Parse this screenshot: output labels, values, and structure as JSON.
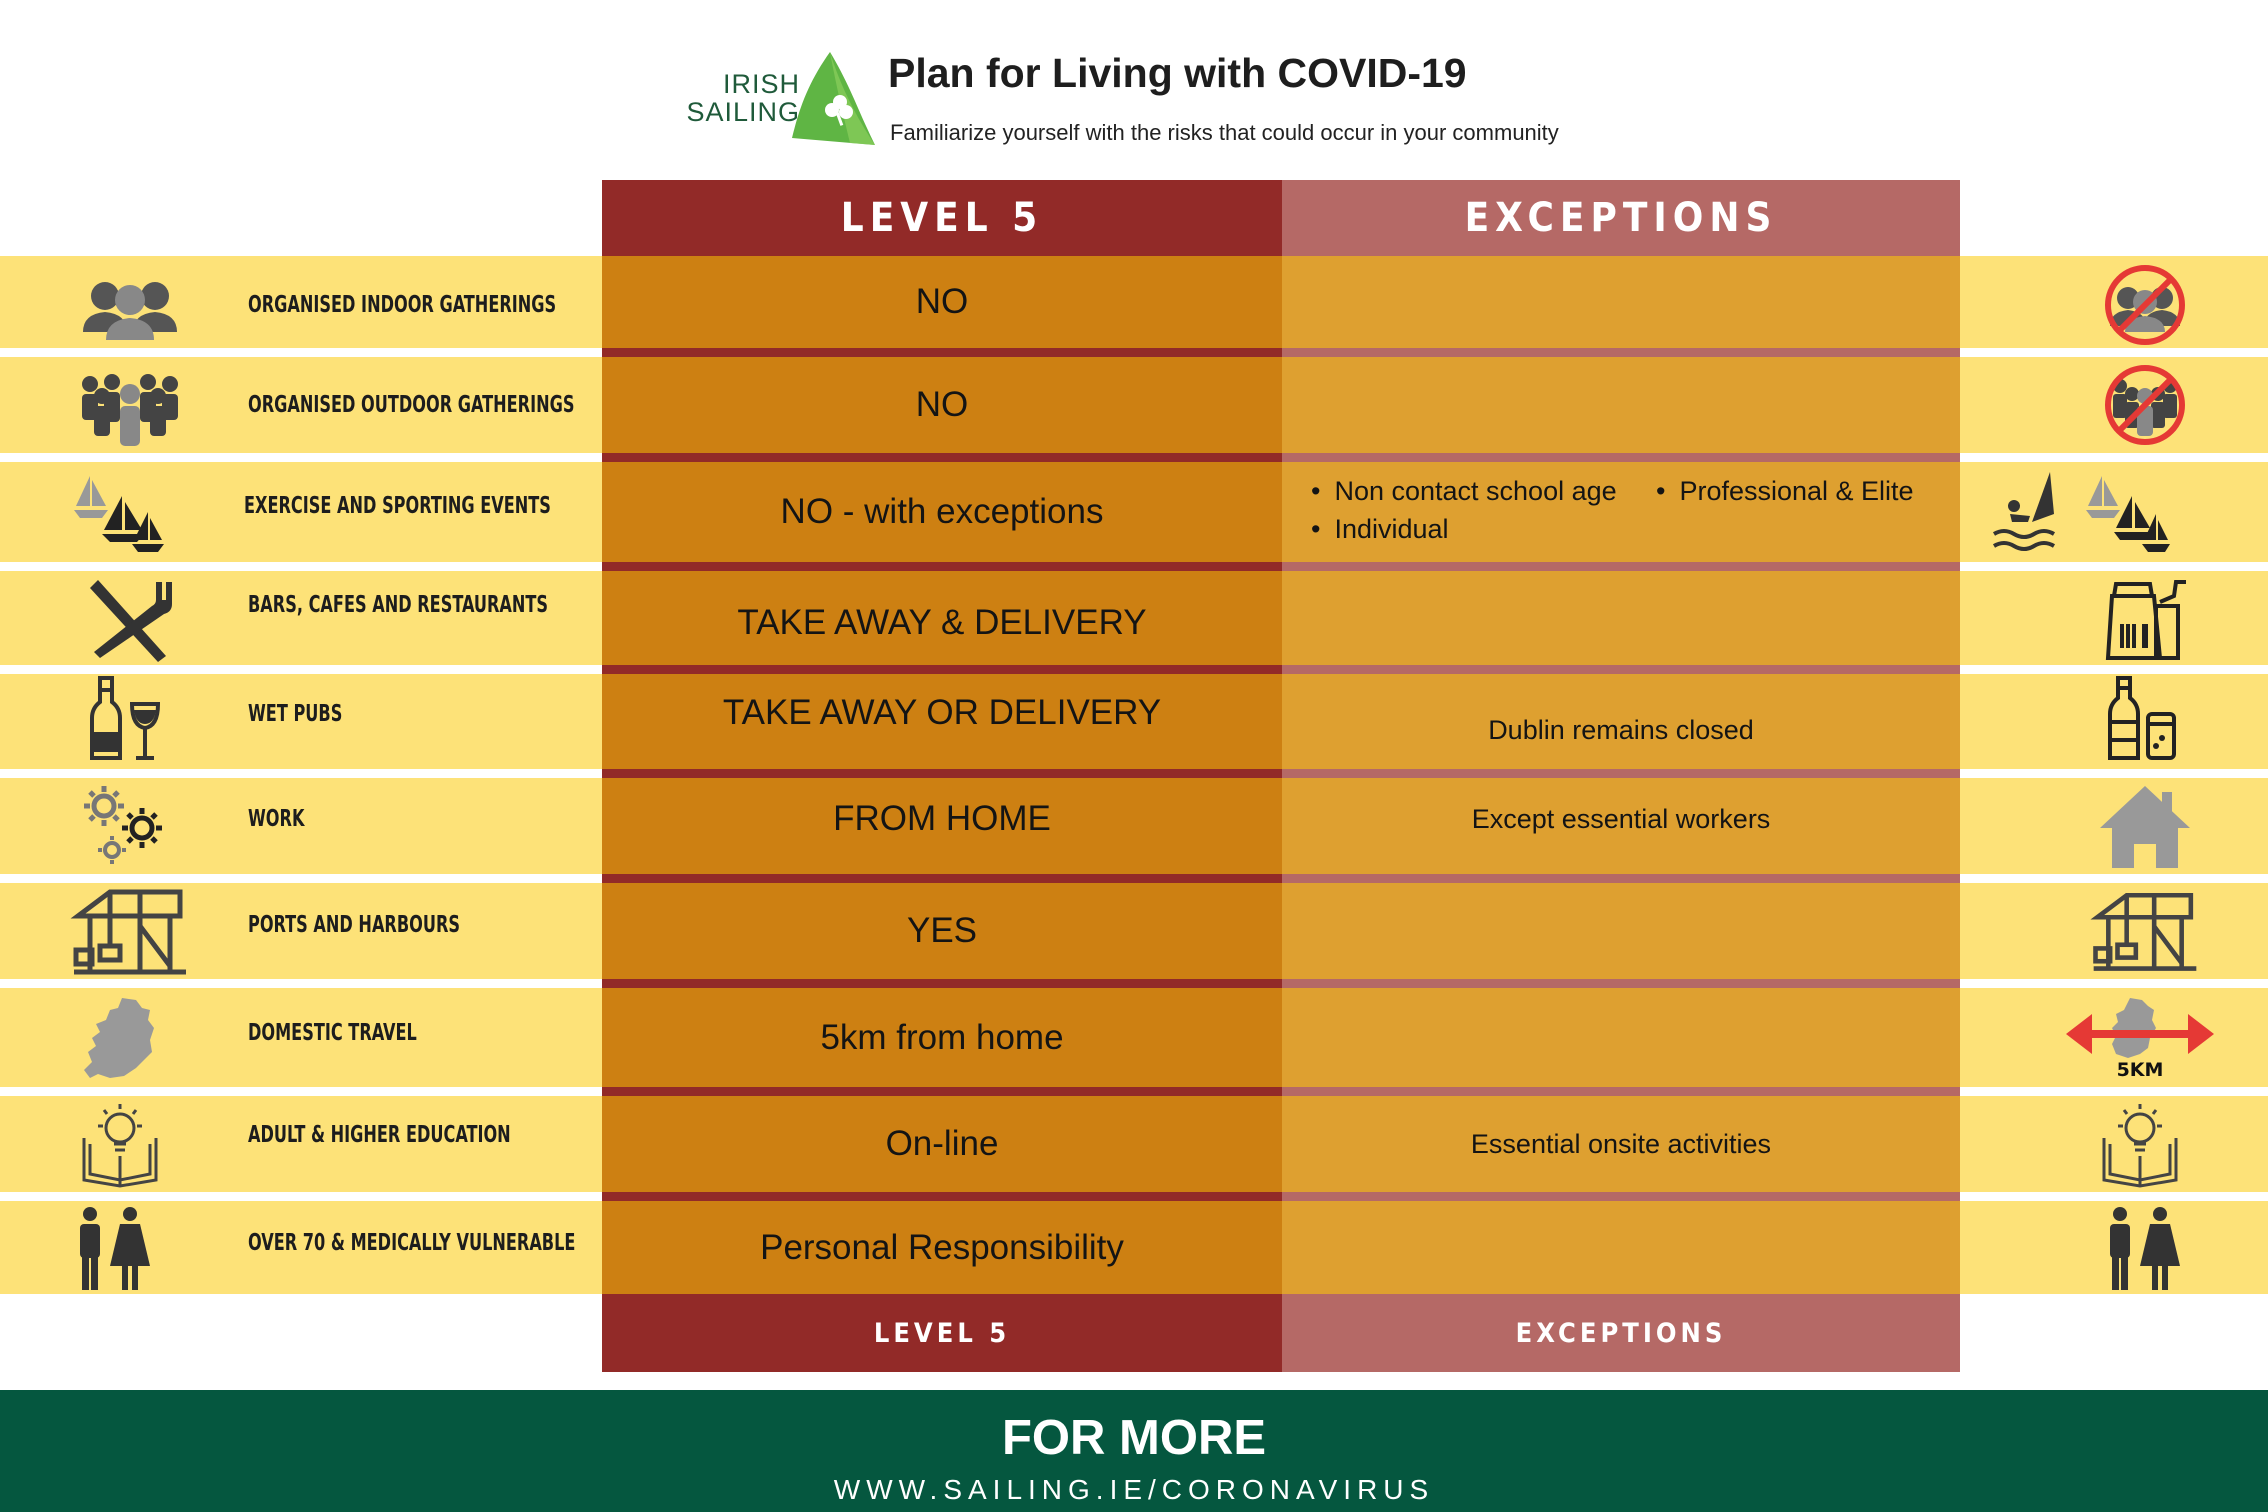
{
  "brand": {
    "line1": "IRISH",
    "line2": "SAILING",
    "leaf_color": "#5fb544",
    "text_color": "#1f5a3a"
  },
  "header": {
    "title": "Plan for Living with COVID-19",
    "subtitle": "Familiarize yourself with the risks that could occur in your community"
  },
  "columns": {
    "level": "LEVEL 5",
    "exceptions": "EXCEPTIONS"
  },
  "rows": [
    {
      "category": "ORGANISED INDOOR GATHERINGS",
      "level5": "NO",
      "exceptions": "",
      "left_icon": "people-group-icon",
      "right_icon": "no-people-group-icon"
    },
    {
      "category": "ORGANISED OUTDOOR GATHERINGS",
      "level5": "NO",
      "exceptions": "",
      "left_icon": "crowd-icon",
      "right_icon": "no-crowd-icon"
    },
    {
      "category": "EXERCISE AND SPORTING EVENTS",
      "level5": "NO - with exceptions",
      "exceptions_list": [
        "Non contact school age",
        "Professional & Elite",
        "Individual"
      ],
      "left_icon": "sailboats-icon",
      "right_icon": "windsurfer-sailboats-icon"
    },
    {
      "category": "BARS, CAFES AND RESTAURANTS",
      "level5": "TAKE AWAY & DELIVERY",
      "exceptions": "",
      "left_icon": "fork-knife-icon",
      "right_icon": "takeaway-bag-icon"
    },
    {
      "category": "WET PUBS",
      "level5": "TAKE AWAY OR DELIVERY",
      "exceptions": "Dublin remains closed",
      "left_icon": "wine-bottle-glass-icon",
      "right_icon": "bottle-can-icon"
    },
    {
      "category": "WORK",
      "level5": "FROM HOME",
      "exceptions": "Except essential workers",
      "left_icon": "gears-icon",
      "right_icon": "house-icon"
    },
    {
      "category": "PORTS AND HARBOURS",
      "level5": "YES",
      "exceptions": "",
      "left_icon": "harbour-crane-icon",
      "right_icon": "harbour-crane-icon"
    },
    {
      "category": "DOMESTIC TRAVEL",
      "level5": "5km from home",
      "exceptions": "",
      "left_icon": "ireland-map-icon",
      "right_icon": "five-km-radius-icon",
      "right_icon_text": "5KM"
    },
    {
      "category": "ADULT & HIGHER EDUCATION",
      "level5": "On-line",
      "exceptions": "Essential onsite activities",
      "left_icon": "lightbulb-book-icon",
      "right_icon": "lightbulb-book-icon"
    },
    {
      "category": "OVER 70 & MEDICALLY VULNERABLE",
      "level5": "Personal Responsibility",
      "exceptions": "",
      "left_icon": "man-woman-icon",
      "right_icon": "man-woman-icon"
    }
  ],
  "footer": {
    "title": "FOR MORE",
    "url": "WWW.SAILING.IE/CORONAVIRUS"
  },
  "colors": {
    "level_header": "#922a28",
    "exceptions_header": "#b56966",
    "level_cell": "#cd8012",
    "exceptions_cell": "#dea030",
    "band": "#fde278",
    "footer": "#05573f"
  }
}
